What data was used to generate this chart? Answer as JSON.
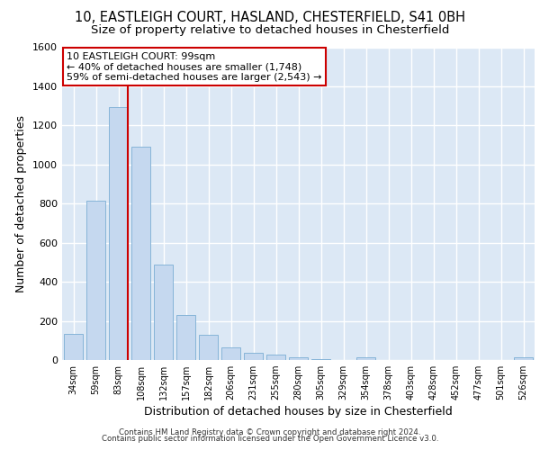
{
  "title_line1": "10, EASTLEIGH COURT, HASLAND, CHESTERFIELD, S41 0BH",
  "title_line2": "Size of property relative to detached houses in Chesterfield",
  "xlabel": "Distribution of detached houses by size in Chesterfield",
  "ylabel": "Number of detached properties",
  "footer_line1": "Contains HM Land Registry data © Crown copyright and database right 2024.",
  "footer_line2": "Contains public sector information licensed under the Open Government Licence v3.0.",
  "bar_labels": [
    "34sqm",
    "59sqm",
    "83sqm",
    "108sqm",
    "132sqm",
    "157sqm",
    "182sqm",
    "206sqm",
    "231sqm",
    "255sqm",
    "280sqm",
    "305sqm",
    "329sqm",
    "354sqm",
    "378sqm",
    "403sqm",
    "428sqm",
    "452sqm",
    "477sqm",
    "501sqm",
    "526sqm"
  ],
  "bar_values": [
    135,
    815,
    1295,
    1090,
    490,
    230,
    130,
    65,
    38,
    28,
    15,
    5,
    2,
    15,
    2,
    2,
    0,
    2,
    2,
    0,
    15
  ],
  "bar_color": "#c5d8ef",
  "bar_edge_color": "#7aadd4",
  "vline_color": "#cc0000",
  "annotation_text": "10 EASTLEIGH COURT: 99sqm\n← 40% of detached houses are smaller (1,748)\n59% of semi-detached houses are larger (2,543) →",
  "annotation_box_color": "#ffffff",
  "annotation_box_edge": "#cc0000",
  "ylim": [
    0,
    1600
  ],
  "yticks": [
    0,
    200,
    400,
    600,
    800,
    1000,
    1200,
    1400,
    1600
  ],
  "bg_color": "#dce8f5",
  "grid_color": "#ffffff",
  "title1_fontsize": 10.5,
  "title2_fontsize": 9.5,
  "axis_label_fontsize": 9,
  "tick_fontsize": 8,
  "footer_fontsize": 6.2,
  "vline_bar_index": 2,
  "annot_fontsize": 8
}
